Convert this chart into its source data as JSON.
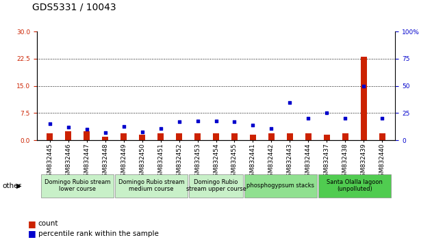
{
  "title": "GDS5331 / 10043",
  "samples": [
    "GSM832445",
    "GSM832446",
    "GSM832447",
    "GSM832448",
    "GSM832449",
    "GSM832450",
    "GSM832451",
    "GSM832452",
    "GSM832453",
    "GSM832454",
    "GSM832455",
    "GSM832441",
    "GSM832442",
    "GSM832443",
    "GSM832444",
    "GSM832437",
    "GSM832438",
    "GSM832439",
    "GSM832440"
  ],
  "counts": [
    2.0,
    2.5,
    2.5,
    1.0,
    2.0,
    1.5,
    2.0,
    2.0,
    2.0,
    2.0,
    2.0,
    1.5,
    2.0,
    2.0,
    2.0,
    1.5,
    2.0,
    23.0,
    2.0
  ],
  "percentiles": [
    15,
    12,
    10,
    7,
    13,
    8,
    11,
    17,
    18,
    18,
    17,
    14,
    11,
    35,
    20,
    25,
    20,
    50,
    20
  ],
  "ylim_left": [
    0,
    30
  ],
  "ylim_right": [
    0,
    100
  ],
  "yticks_left": [
    0,
    7.5,
    15,
    22.5,
    30
  ],
  "yticks_right": [
    0,
    25,
    50,
    75,
    100
  ],
  "groups": [
    {
      "label": "Domingo Rubio stream\nlower course",
      "start": 0,
      "end": 4,
      "color": "#c8f0c8"
    },
    {
      "label": "Domingo Rubio stream\nmedium course",
      "start": 4,
      "end": 8,
      "color": "#c8f0c8"
    },
    {
      "label": "Domingo Rubio\nstream upper course",
      "start": 8,
      "end": 11,
      "color": "#c8f0c8"
    },
    {
      "label": "phosphogypsum stacks",
      "start": 11,
      "end": 15,
      "color": "#90e090"
    },
    {
      "label": "Santa Olalla lagoon\n(unpolluted)",
      "start": 15,
      "end": 19,
      "color": "#50cc50"
    }
  ],
  "bar_color": "#cc2200",
  "dot_color": "#0000cc",
  "bg_color": "#ffffff",
  "grid_color": "#000000",
  "ylabel_left_color": "#cc2200",
  "ylabel_right_color": "#0000cc",
  "other_label": "other",
  "legend_count_label": "count",
  "legend_pct_label": "percentile rank within the sample",
  "title_fontsize": 10,
  "tick_fontsize": 6.5,
  "group_fontsize": 6,
  "legend_fontsize": 7.5,
  "gridline_ticks": [
    7.5,
    15,
    22.5
  ]
}
